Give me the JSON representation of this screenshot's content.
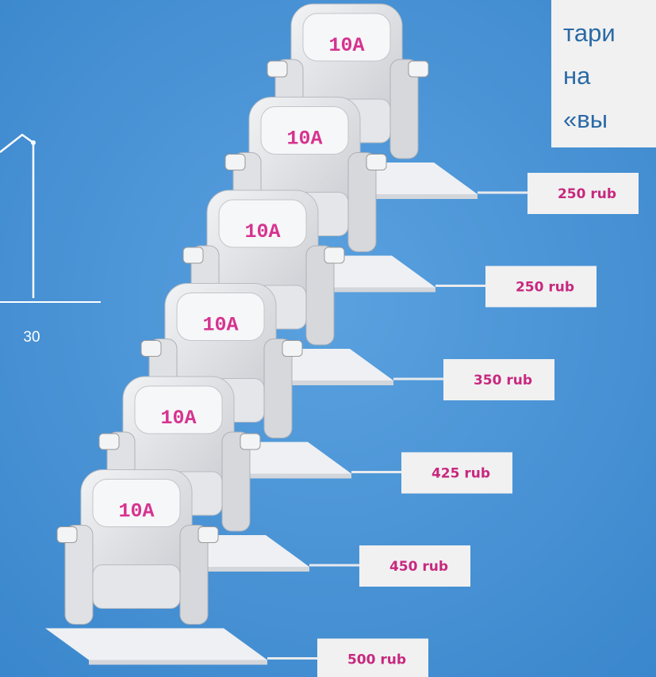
{
  "chart_fragment": {
    "tick_label": "30"
  },
  "note": {
    "lines": [
      "тари",
      "на",
      "«вы"
    ]
  },
  "seats": [
    {
      "label": "10A",
      "price": "250 rub"
    },
    {
      "label": "10A",
      "price": "250 rub"
    },
    {
      "label": "10A",
      "price": "350 rub"
    },
    {
      "label": "10A",
      "price": "425 rub"
    },
    {
      "label": "10A",
      "price": "450 rub"
    },
    {
      "label": "10A",
      "price": "500 rub"
    }
  ]
}
